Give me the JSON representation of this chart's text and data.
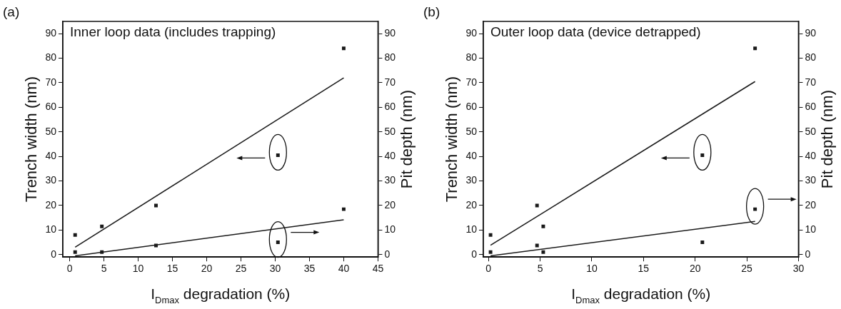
{
  "chart_data": [
    {
      "type": "scatter",
      "title": "Inner loop data (includes trapping)",
      "annotations": [
        "(a)"
      ],
      "xlabel": "I$_{Dmax}$ degradation (%)",
      "ylabel": "Trench width (nm)",
      "y2label": "Pit depth (nm)",
      "xlim": [
        -1,
        45
      ],
      "xticks": [
        0,
        5,
        10,
        15,
        20,
        25,
        30,
        35,
        40,
        45
      ],
      "ylim": [
        -1,
        95
      ],
      "yticks": [
        0,
        10,
        20,
        30,
        40,
        50,
        60,
        70,
        80,
        90
      ],
      "y2lim": [
        -1,
        95
      ],
      "y2ticks": [
        0,
        10,
        20,
        30,
        40,
        50,
        60,
        70,
        80,
        90
      ],
      "grid": false,
      "legend": false,
      "series": [
        {
          "color": "#1a1a1a",
          "marker": "square",
          "x": [
            0.8,
            4.7,
            12.6,
            30.4,
            40
          ],
          "values": [
            8,
            11.5,
            20,
            40.5,
            84
          ]
        },
        {
          "color": "#1a1a1a",
          "marker": "square",
          "axis": "y2",
          "x": [
            0.8,
            4.7,
            12.6,
            30.4,
            40
          ],
          "values": [
            1,
            1,
            3.7,
            5,
            18.5
          ]
        },
        {
          "type": "line",
          "color": "#1a1a1a",
          "marker": "none",
          "x": [
            0.8,
            40
          ],
          "values": [
            3,
            72
          ]
        },
        {
          "type": "line",
          "color": "#1a1a1a",
          "marker": "none",
          "axis": "y2",
          "x": [
            0.8,
            40
          ],
          "values": [
            -0.5,
            14.2
          ]
        }
      ]
    },
    {
      "type": "scatter",
      "title": "Outer loop data (device detrapped)",
      "annotations": [
        "(b)"
      ],
      "xlabel": "I$_{Dmax}$ degradation (%)",
      "ylabel": "Trench width (nm)",
      "y2label": "Pit depth (nm)",
      "xlim": [
        -0.5,
        30
      ],
      "xticks": [
        0,
        5,
        10,
        15,
        20,
        25,
        30
      ],
      "ylim": [
        -1,
        95
      ],
      "yticks": [
        0,
        10,
        20,
        30,
        40,
        50,
        60,
        70,
        80,
        90
      ],
      "y2lim": [
        -1,
        95
      ],
      "y2ticks": [
        0,
        10,
        20,
        30,
        40,
        50,
        60,
        70,
        80,
        90
      ],
      "grid": false,
      "legend": false,
      "series": [
        {
          "color": "#1a1a1a",
          "marker": "square",
          "x": [
            0.2,
            4.7,
            5.3,
            20.7,
            25.8
          ],
          "values": [
            8,
            20,
            11.5,
            40.5,
            84
          ]
        },
        {
          "color": "#1a1a1a",
          "marker": "square",
          "axis": "y2",
          "x": [
            0.2,
            4.7,
            5.3,
            20.7,
            25.8
          ],
          "values": [
            1,
            3.7,
            1,
            5,
            18.5
          ]
        },
        {
          "type": "line",
          "color": "#1a1a1a",
          "marker": "none",
          "x": [
            0.2,
            25.8
          ],
          "values": [
            3.8,
            70.5
          ]
        },
        {
          "type": "line",
          "color": "#1a1a1a",
          "marker": "none",
          "axis": "y2",
          "x": [
            0.2,
            25.8
          ],
          "values": [
            -0.5,
            13.5
          ]
        }
      ]
    }
  ]
}
